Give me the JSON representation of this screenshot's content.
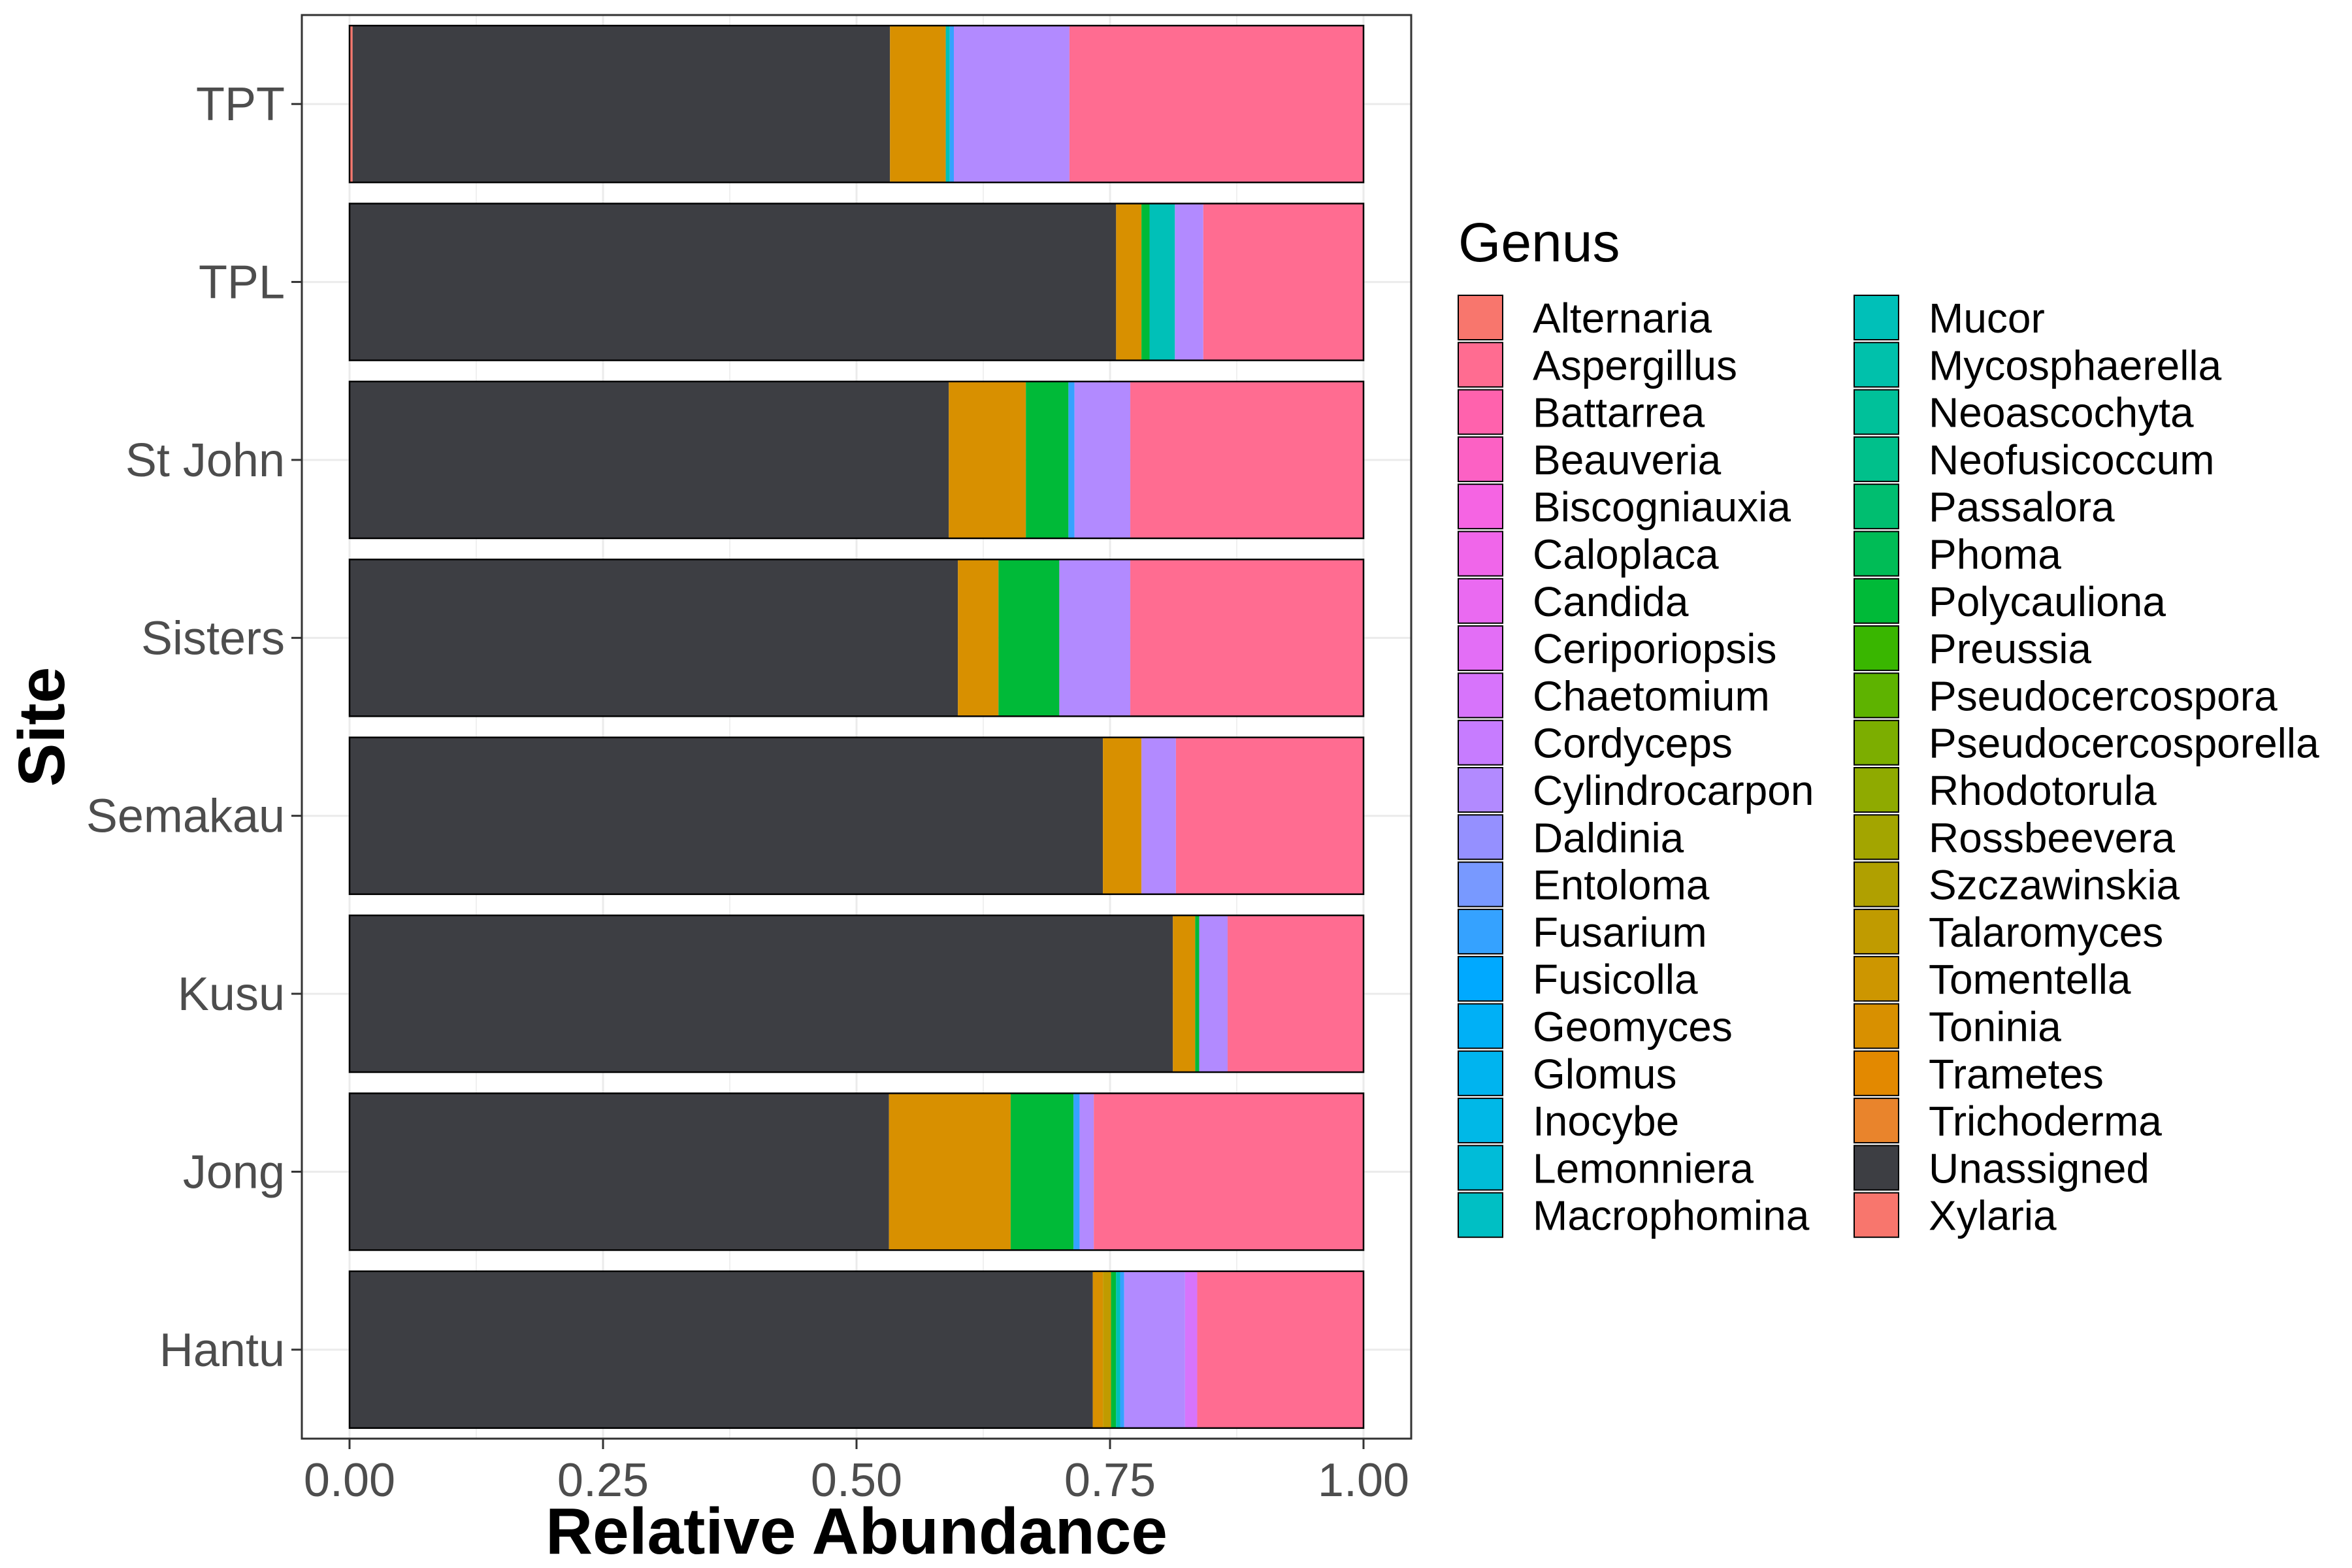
{
  "chart_data": {
    "type": "bar",
    "orientation": "horizontal",
    "stacked": true,
    "xlabel": "Relative Abundance",
    "ylabel": "Site",
    "xlim": [
      0,
      1
    ],
    "x_ticks": [
      "0.00",
      "0.25",
      "0.50",
      "0.75",
      "1.00"
    ],
    "grid": true,
    "legend_placement": "right",
    "legend_title": "Genus",
    "categories": [
      "TPT",
      "TPL",
      "St John",
      "Sisters",
      "Semakau",
      "Kusu",
      "Jong",
      "Hantu"
    ],
    "genera": [
      {
        "name": "Alternaria",
        "color": "#F8766D"
      },
      {
        "name": "Aspergillus",
        "color": "#FF6C91"
      },
      {
        "name": "Battarrea",
        "color": "#FF62AD"
      },
      {
        "name": "Beauveria",
        "color": "#FC61C4"
      },
      {
        "name": "Biscogniauxia",
        "color": "#F564E3"
      },
      {
        "name": "Caloplaca",
        "color": "#F066EA"
      },
      {
        "name": "Candida",
        "color": "#EA6AF1"
      },
      {
        "name": "Ceriporiopsis",
        "color": "#E36EF6"
      },
      {
        "name": "Chaetomium",
        "color": "#D774FB"
      },
      {
        "name": "Cordyceps",
        "color": "#C77CFF"
      },
      {
        "name": "Cylindrocarpon",
        "color": "#B28AFF"
      },
      {
        "name": "Daldinia",
        "color": "#9590FF"
      },
      {
        "name": "Entoloma",
        "color": "#7899FF"
      },
      {
        "name": "Fusarium",
        "color": "#35A2FF"
      },
      {
        "name": "Fusicolla",
        "color": "#00A9FF"
      },
      {
        "name": "Geomyces",
        "color": "#00B0F6"
      },
      {
        "name": "Glomus",
        "color": "#00B4EF"
      },
      {
        "name": "Inocybe",
        "color": "#00B8E7"
      },
      {
        "name": "Lemonniera",
        "color": "#00BCD8"
      },
      {
        "name": "Macrophomina",
        "color": "#00BFC4"
      },
      {
        "name": "Mucor",
        "color": "#00C0B8"
      },
      {
        "name": "Mycosphaerella",
        "color": "#00C1AB"
      },
      {
        "name": "Neoascochyta",
        "color": "#00C19A"
      },
      {
        "name": "Neofusicoccum",
        "color": "#00C08B"
      },
      {
        "name": "Passalora",
        "color": "#00BE70"
      },
      {
        "name": "Phoma",
        "color": "#00BC56"
      },
      {
        "name": "Polycauliona",
        "color": "#00BA38"
      },
      {
        "name": "Preussia",
        "color": "#39B600"
      },
      {
        "name": "Pseudocercospora",
        "color": "#5EB300"
      },
      {
        "name": "Pseudocercosporella",
        "color": "#7CAE00"
      },
      {
        "name": "Rhodotorula",
        "color": "#8FAA00"
      },
      {
        "name": "Rossbeevera",
        "color": "#A3A500"
      },
      {
        "name": "Szczawinskia",
        "color": "#B0A000"
      },
      {
        "name": "Talaromyces",
        "color": "#C09B00"
      },
      {
        "name": "Tomentella",
        "color": "#CD9600"
      },
      {
        "name": "Toninia",
        "color": "#D89000"
      },
      {
        "name": "Trametes",
        "color": "#E38900"
      },
      {
        "name": "Trichoderma",
        "color": "#E9842C"
      },
      {
        "name": "Unassigned",
        "color": "#3D3E43"
      },
      {
        "name": "Xylaria",
        "color": "#F8766D"
      }
    ],
    "series": [
      {
        "name": "TPT",
        "segments": [
          {
            "genus": "Alternaria",
            "value": 0.003
          },
          {
            "genus": "Unassigned",
            "value": 0.53
          },
          {
            "genus": "Toninia",
            "value": 0.055
          },
          {
            "genus": "Mucor",
            "value": 0.004
          },
          {
            "genus": "Fusarium",
            "value": 0.004
          },
          {
            "genus": "Cylindrocarpon",
            "value": 0.114
          },
          {
            "genus": "Aspergillus",
            "value": 0.29
          }
        ]
      },
      {
        "name": "TPL",
        "segments": [
          {
            "genus": "Unassigned",
            "value": 0.756
          },
          {
            "genus": "Toninia",
            "value": 0.025
          },
          {
            "genus": "Polycauliona",
            "value": 0.008
          },
          {
            "genus": "Mucor",
            "value": 0.025
          },
          {
            "genus": "Cylindrocarpon",
            "value": 0.028
          },
          {
            "genus": "Aspergillus",
            "value": 0.158
          }
        ]
      },
      {
        "name": "St John",
        "segments": [
          {
            "genus": "Unassigned",
            "value": 0.591
          },
          {
            "genus": "Toninia",
            "value": 0.076
          },
          {
            "genus": "Polycauliona",
            "value": 0.042
          },
          {
            "genus": "Fusarium",
            "value": 0.006
          },
          {
            "genus": "Cylindrocarpon",
            "value": 0.055
          },
          {
            "genus": "Aspergillus",
            "value": 0.23
          }
        ]
      },
      {
        "name": "Sisters",
        "segments": [
          {
            "genus": "Unassigned",
            "value": 0.6
          },
          {
            "genus": "Toninia",
            "value": 0.04
          },
          {
            "genus": "Polycauliona",
            "value": 0.06
          },
          {
            "genus": "Cylindrocarpon",
            "value": 0.07
          },
          {
            "genus": "Aspergillus",
            "value": 0.23
          }
        ]
      },
      {
        "name": "Semakau",
        "segments": [
          {
            "genus": "Unassigned",
            "value": 0.743
          },
          {
            "genus": "Toninia",
            "value": 0.038
          },
          {
            "genus": "Cylindrocarpon",
            "value": 0.034
          },
          {
            "genus": "Aspergillus",
            "value": 0.185
          }
        ]
      },
      {
        "name": "Kusu",
        "segments": [
          {
            "genus": "Unassigned",
            "value": 0.812
          },
          {
            "genus": "Toninia",
            "value": 0.022
          },
          {
            "genus": "Polycauliona",
            "value": 0.004
          },
          {
            "genus": "Cylindrocarpon",
            "value": 0.028
          },
          {
            "genus": "Aspergillus",
            "value": 0.134
          }
        ]
      },
      {
        "name": "Jong",
        "segments": [
          {
            "genus": "Unassigned",
            "value": 0.532
          },
          {
            "genus": "Toninia",
            "value": 0.12
          },
          {
            "genus": "Polycauliona",
            "value": 0.062
          },
          {
            "genus": "Fusarium",
            "value": 0.006
          },
          {
            "genus": "Cylindrocarpon",
            "value": 0.014
          },
          {
            "genus": "Aspergillus",
            "value": 0.266
          }
        ]
      },
      {
        "name": "Hantu",
        "segments": [
          {
            "genus": "Unassigned",
            "value": 0.733
          },
          {
            "genus": "Toninia",
            "value": 0.01
          },
          {
            "genus": "Talaromyces",
            "value": 0.008
          },
          {
            "genus": "Polycauliona",
            "value": 0.005
          },
          {
            "genus": "Mucor",
            "value": 0.004
          },
          {
            "genus": "Fusarium",
            "value": 0.004
          },
          {
            "genus": "Cylindrocarpon",
            "value": 0.06
          },
          {
            "genus": "Chaetomium",
            "value": 0.012
          },
          {
            "genus": "Aspergillus",
            "value": 0.164
          }
        ]
      }
    ]
  }
}
